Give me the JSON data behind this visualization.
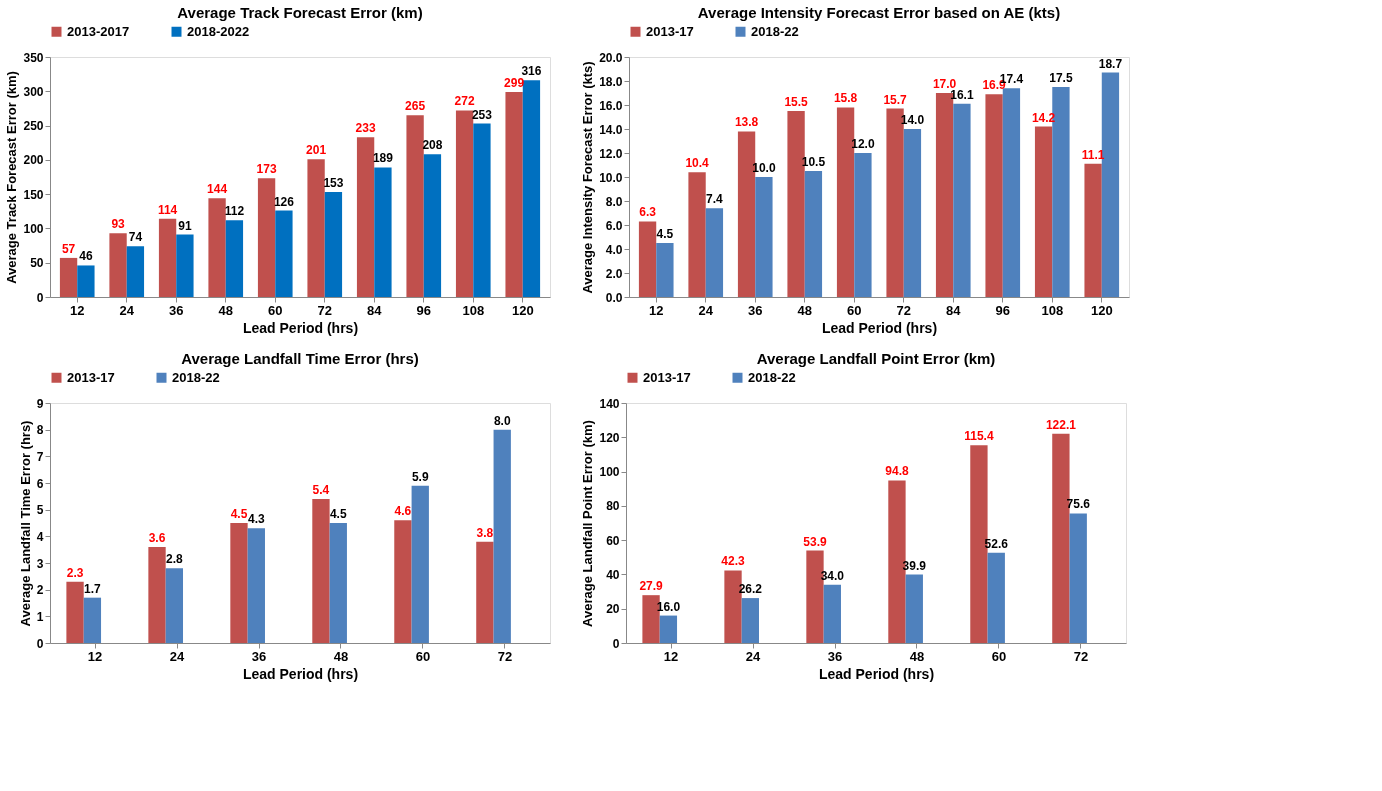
{
  "chart_data": [
    {
      "type": "bar",
      "title": "Average Track Forecast Error (km)",
      "xlabel": "Lead Period (hrs)",
      "ylabel": "Average Track Forecast Error (km)",
      "categories": [
        "12",
        "24",
        "36",
        "48",
        "60",
        "72",
        "84",
        "96",
        "108",
        "120"
      ],
      "series": [
        {
          "name": "2013-2017",
          "color": "#c0504d",
          "values": [
            57,
            93,
            114,
            144,
            173,
            201,
            233,
            265,
            272,
            299
          ]
        },
        {
          "name": "2018-2022",
          "color": "#0070c0",
          "values": [
            46,
            74,
            91,
            112,
            126,
            153,
            189,
            208,
            253,
            316
          ]
        }
      ],
      "ylim": [
        0,
        350
      ],
      "yticks": [
        0,
        50,
        100,
        150,
        200,
        250,
        300,
        350
      ],
      "grid": false,
      "legend": "top",
      "data_labels": true
    },
    {
      "type": "bar",
      "title": "Average Intensity Forecast Error based on AE (kts)",
      "xlabel": "Lead Period (hrs)",
      "ylabel": "Average Intensity Forecast Error (kts)",
      "categories": [
        "12",
        "24",
        "36",
        "48",
        "60",
        "72",
        "84",
        "96",
        "108",
        "120"
      ],
      "series": [
        {
          "name": "2013-17",
          "color": "#c0504d",
          "values": [
            6.3,
            10.4,
            13.8,
            15.5,
            15.8,
            15.7,
            17.0,
            16.9,
            14.2,
            11.1
          ],
          "value_labels": [
            "6.3",
            "10.4",
            "13.8",
            "15.5",
            "15.8",
            "15.7",
            "17.0",
            "16.9",
            "14.2",
            "11.1"
          ]
        },
        {
          "name": "2018-22",
          "color": "#4f81bd",
          "values": [
            4.5,
            7.4,
            10.0,
            10.5,
            12.0,
            14.0,
            16.1,
            17.4,
            17.5,
            18.7
          ],
          "value_labels": [
            "4.5",
            "7.4",
            "10.0",
            "10.5",
            "12.0",
            "14.0",
            "16.1",
            "17.4",
            "17.5",
            "18.7"
          ]
        }
      ],
      "ylim": [
        0,
        20
      ],
      "yticks": [
        {
          "value": 0,
          "label": "0.0"
        },
        {
          "value": 2,
          "label": "2.0"
        },
        {
          "value": 4,
          "label": "4.0"
        },
        {
          "value": 6,
          "label": "6.0"
        },
        {
          "value": 8,
          "label": "8.0"
        },
        {
          "value": 10,
          "label": "10.0"
        },
        {
          "value": 12,
          "label": "12.0"
        },
        {
          "value": 14,
          "label": "14.0"
        },
        {
          "value": 16,
          "label": "16.0"
        },
        {
          "value": 18,
          "label": "18.0"
        },
        {
          "value": 20,
          "label": "20.0"
        }
      ],
      "grid": false,
      "legend": "top"
    },
    {
      "type": "bar",
      "title": "Average Landfall Time Error (hrs)",
      "xlabel": "Lead Period  (hrs)",
      "ylabel": "Average Landfall Time Error (hrs)",
      "categories": [
        "12",
        "24",
        "36",
        "48",
        "60",
        "72"
      ],
      "series": [
        {
          "name": "2013-17",
          "color": "#c0504d",
          "values": [
            2.3,
            3.6,
            4.5,
            5.4,
            4.6,
            3.8
          ],
          "value_labels": [
            "2.3",
            "3.6",
            "4.5",
            "5.4",
            "4.6",
            "3.8"
          ]
        },
        {
          "name": "2018-22",
          "color": "#4f81bd",
          "values": [
            1.7,
            2.8,
            4.3,
            4.5,
            5.9,
            8.0
          ],
          "value_labels": [
            "1.7",
            "2.8",
            "4.3",
            "4.5",
            "5.9",
            "8.0"
          ]
        }
      ],
      "ylim": [
        0,
        9
      ],
      "yticks": [
        0,
        1,
        2,
        3,
        4,
        5,
        6,
        7,
        8,
        9
      ],
      "grid": false,
      "legend": "top"
    },
    {
      "type": "bar",
      "title": "Average Landfall Point Error (km)",
      "xlabel": "Lead Period (hrs)",
      "ylabel": "Average Landfall Point Error (km)",
      "categories": [
        "12",
        "24",
        "36",
        "48",
        "60",
        "72"
      ],
      "series": [
        {
          "name": "2013-17",
          "color": "#c0504d",
          "values": [
            27.9,
            42.3,
            53.9,
            94.8,
            115.4,
            122.1
          ],
          "value_labels": [
            "27.9",
            "42.3",
            "53.9",
            "94.8",
            "115.4",
            "122.1"
          ]
        },
        {
          "name": "2018-22",
          "color": "#4f81bd",
          "values": [
            16.0,
            26.2,
            34.0,
            39.9,
            52.6,
            75.6
          ],
          "value_labels": [
            "16.0",
            "26.2",
            "34.0",
            "39.9",
            "52.6",
            "75.6"
          ]
        }
      ],
      "ylim": [
        0,
        140
      ],
      "yticks": [
        0,
        20,
        40,
        60,
        80,
        100,
        120,
        140
      ],
      "grid": false,
      "legend": "top"
    }
  ]
}
